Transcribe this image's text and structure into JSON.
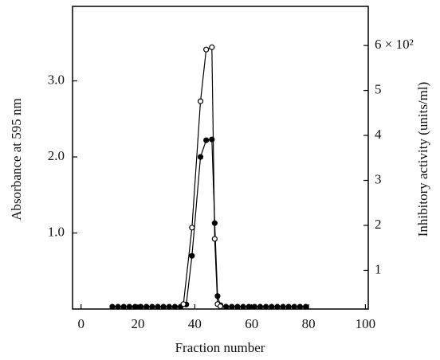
{
  "chart_data": {
    "type": "line",
    "xlabel": "Fraction number",
    "ylabel": "Absorbance at 595 nm",
    "y2label": "Inhibitory activity (units/ml)",
    "xlim": [
      -3,
      101
    ],
    "xticks": [
      0,
      20,
      40,
      60,
      80,
      100
    ],
    "ylim": [
      0,
      3.98
    ],
    "yticks": [
      {
        "value": 1,
        "label": "1.0"
      },
      {
        "value": 2,
        "label": "2.0"
      },
      {
        "value": 3,
        "label": "3.0"
      }
    ],
    "y2lim": [
      0.14,
      6.87
    ],
    "y2ticks": [
      1,
      2,
      3,
      4,
      5,
      {
        "value": 6,
        "label": "6 × 10²"
      }
    ],
    "series": [
      {
        "marker": "filled",
        "color": "#000000",
        "x": [
          11,
          13,
          15,
          17,
          19,
          21,
          23,
          25,
          27,
          29,
          31,
          33,
          35,
          37,
          39,
          42,
          44,
          46,
          47,
          48,
          49,
          51,
          53,
          55,
          57,
          59,
          61,
          63,
          65,
          67,
          69,
          71,
          73,
          75,
          77,
          79
        ],
        "values": [
          0.03,
          0.03,
          0.03,
          0.03,
          0.03,
          0.03,
          0.03,
          0.03,
          0.03,
          0.03,
          0.03,
          0.03,
          0.03,
          0.06,
          0.7,
          2.0,
          2.22,
          2.23,
          1.13,
          0.17,
          0.05,
          0.03,
          0.03,
          0.03,
          0.03,
          0.03,
          0.03,
          0.03,
          0.03,
          0.03,
          0.03,
          0.03,
          0.03,
          0.03,
          0.03,
          0.03
        ]
      },
      {
        "marker": "open",
        "color": "#000000",
        "axis": "y2",
        "x": [
          36,
          39,
          42,
          44,
          46,
          47,
          48,
          49
        ],
        "values": [
          0.25,
          1.95,
          4.76,
          5.91,
          5.96,
          1.7,
          0.25,
          0.2
        ]
      }
    ]
  }
}
